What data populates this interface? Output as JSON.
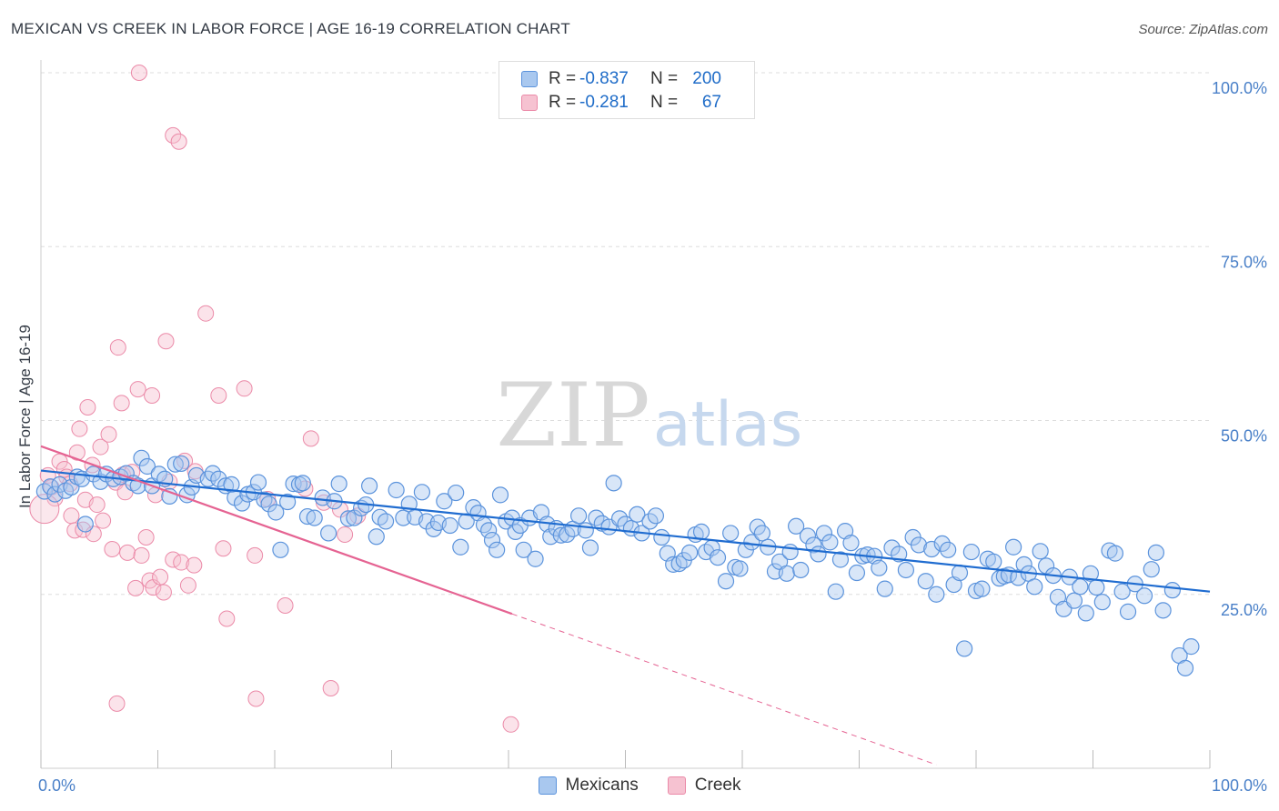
{
  "header": {
    "title": "MEXICAN VS CREEK IN LABOR FORCE | AGE 16-19 CORRELATION CHART",
    "source": "Source: ZipAtlas.com"
  },
  "watermark": {
    "zip": "ZIP",
    "atlas": "atlas"
  },
  "legend": {
    "rows": [
      {
        "r_label": "R =",
        "r_value": "-0.837",
        "n_label": "N =",
        "n_value": "200"
      },
      {
        "r_label": "R =",
        "r_value": "-0.281",
        "n_label": "N =",
        "n_value": "67"
      }
    ]
  },
  "bottom_legend": {
    "mexicans": "Mexicans",
    "creek": "Creek"
  },
  "colors": {
    "mexicans_fill": "#a9c8ef",
    "mexicans_stroke": "#5b93dc",
    "mexicans_line": "#1f6cd0",
    "creek_fill": "#f6c2d1",
    "creek_stroke": "#eb8aa8",
    "creek_line": "#e56392",
    "axis_text": "#4a80c8",
    "grid": "#dddddd"
  },
  "chart_data": {
    "type": "scatter",
    "title": "MEXICAN VS CREEK IN LABOR FORCE | AGE 16-19 CORRELATION CHART",
    "xlabel": "",
    "ylabel": "In Labor Force | Age 16-19",
    "xlim": [
      0,
      100
    ],
    "ylim": [
      0,
      100
    ],
    "x_tick_labels": [
      {
        "value": 0,
        "label": "0.0%"
      },
      {
        "value": 100,
        "label": "100.0%"
      }
    ],
    "y_tick_labels": [
      {
        "value": 25,
        "label": "25.0%"
      },
      {
        "value": 50,
        "label": "50.0%"
      },
      {
        "value": 75,
        "label": "75.0%"
      },
      {
        "value": 100,
        "label": "100.0%"
      }
    ],
    "grid": "horizontal dashed",
    "legend_position": "top-center",
    "series": [
      {
        "name": "Mexicans",
        "r": -0.837,
        "n": 200,
        "trend": {
          "x0": 0,
          "y0": 42.8,
          "x1": 100,
          "y1": 25.4
        },
        "points": [
          [
            0.3,
            39.8
          ],
          [
            0.8,
            40.5
          ],
          [
            1.2,
            39.4
          ],
          [
            1.6,
            40.8
          ],
          [
            2.1,
            39.9
          ],
          [
            2.6,
            40.4
          ],
          [
            3.1,
            41.9
          ],
          [
            3.5,
            41.6
          ],
          [
            3.8,
            35.1
          ],
          [
            4.5,
            42.3
          ],
          [
            5.1,
            41.2
          ],
          [
            5.6,
            42.3
          ],
          [
            6.2,
            41.6
          ],
          [
            6.8,
            41.9
          ],
          [
            7.3,
            42.4
          ],
          [
            7.9,
            41.0
          ],
          [
            8.3,
            40.6
          ],
          [
            8.6,
            44.6
          ],
          [
            9.1,
            43.4
          ],
          [
            9.5,
            40.6
          ],
          [
            10.1,
            42.3
          ],
          [
            10.6,
            41.6
          ],
          [
            11.0,
            39.1
          ],
          [
            11.5,
            43.7
          ],
          [
            12.0,
            43.8
          ],
          [
            12.5,
            39.3
          ],
          [
            12.9,
            40.4
          ],
          [
            13.3,
            42.1
          ],
          [
            14.3,
            41.6
          ],
          [
            14.7,
            42.4
          ],
          [
            15.2,
            41.6
          ],
          [
            15.8,
            40.6
          ],
          [
            16.3,
            40.8
          ],
          [
            16.6,
            38.9
          ],
          [
            17.2,
            38.1
          ],
          [
            17.7,
            39.4
          ],
          [
            18.2,
            39.7
          ],
          [
            18.6,
            41.1
          ],
          [
            19.1,
            38.6
          ],
          [
            19.5,
            38.0
          ],
          [
            20.1,
            36.8
          ],
          [
            20.5,
            31.4
          ],
          [
            21.1,
            38.3
          ],
          [
            21.6,
            40.9
          ],
          [
            22.1,
            40.8
          ],
          [
            22.4,
            41.0
          ],
          [
            22.8,
            36.2
          ],
          [
            23.4,
            36.0
          ],
          [
            24.1,
            38.9
          ],
          [
            24.6,
            33.8
          ],
          [
            25.1,
            38.4
          ],
          [
            25.5,
            40.9
          ],
          [
            26.3,
            35.9
          ],
          [
            26.8,
            36.0
          ],
          [
            27.4,
            37.4
          ],
          [
            27.8,
            37.9
          ],
          [
            28.1,
            40.6
          ],
          [
            28.7,
            33.3
          ],
          [
            29.0,
            36.1
          ],
          [
            29.5,
            35.5
          ],
          [
            30.4,
            40.0
          ],
          [
            31.0,
            36.0
          ],
          [
            31.5,
            38.0
          ],
          [
            32.0,
            36.1
          ],
          [
            32.6,
            39.7
          ],
          [
            33.0,
            35.5
          ],
          [
            33.6,
            34.4
          ],
          [
            34.0,
            35.3
          ],
          [
            34.5,
            38.4
          ],
          [
            35.0,
            34.9
          ],
          [
            35.5,
            39.6
          ],
          [
            35.9,
            31.8
          ],
          [
            36.4,
            35.5
          ],
          [
            37.0,
            37.5
          ],
          [
            37.4,
            36.7
          ],
          [
            37.9,
            35.0
          ],
          [
            38.3,
            34.2
          ],
          [
            38.6,
            32.8
          ],
          [
            39.0,
            31.4
          ],
          [
            39.3,
            39.3
          ],
          [
            39.8,
            35.5
          ],
          [
            40.3,
            36.0
          ],
          [
            40.6,
            34.0
          ],
          [
            41.0,
            34.9
          ],
          [
            41.3,
            31.4
          ],
          [
            41.8,
            36.0
          ],
          [
            42.3,
            30.1
          ],
          [
            42.8,
            36.8
          ],
          [
            43.3,
            35.1
          ],
          [
            43.6,
            33.3
          ],
          [
            44.1,
            34.5
          ],
          [
            44.5,
            33.5
          ],
          [
            45.0,
            33.6
          ],
          [
            45.5,
            34.4
          ],
          [
            46.0,
            36.3
          ],
          [
            46.6,
            34.2
          ],
          [
            47.0,
            31.7
          ],
          [
            47.5,
            36.0
          ],
          [
            48.0,
            35.2
          ],
          [
            48.6,
            34.7
          ],
          [
            49.0,
            41.0
          ],
          [
            49.5,
            35.9
          ],
          [
            50.0,
            35.1
          ],
          [
            50.5,
            34.5
          ],
          [
            51.0,
            36.5
          ],
          [
            51.4,
            33.8
          ],
          [
            52.1,
            35.5
          ],
          [
            52.6,
            36.3
          ],
          [
            53.1,
            33.2
          ],
          [
            53.6,
            30.9
          ],
          [
            54.1,
            29.3
          ],
          [
            54.6,
            29.4
          ],
          [
            55.0,
            29.9
          ],
          [
            55.5,
            31.0
          ],
          [
            56.0,
            33.6
          ],
          [
            56.5,
            34.0
          ],
          [
            56.9,
            31.1
          ],
          [
            57.4,
            31.7
          ],
          [
            57.9,
            30.3
          ],
          [
            58.6,
            26.9
          ],
          [
            59.0,
            33.8
          ],
          [
            59.4,
            28.9
          ],
          [
            59.8,
            28.7
          ],
          [
            60.3,
            31.4
          ],
          [
            60.8,
            32.5
          ],
          [
            61.3,
            34.7
          ],
          [
            61.7,
            33.8
          ],
          [
            62.2,
            31.8
          ],
          [
            62.8,
            28.3
          ],
          [
            63.2,
            29.7
          ],
          [
            63.8,
            28.0
          ],
          [
            64.1,
            31.1
          ],
          [
            64.6,
            34.8
          ],
          [
            65.0,
            28.5
          ],
          [
            65.6,
            33.4
          ],
          [
            66.1,
            32.1
          ],
          [
            66.5,
            30.8
          ],
          [
            67.0,
            33.8
          ],
          [
            67.5,
            32.5
          ],
          [
            68.0,
            25.4
          ],
          [
            68.4,
            30.0
          ],
          [
            68.8,
            34.1
          ],
          [
            69.3,
            32.4
          ],
          [
            69.8,
            28.1
          ],
          [
            70.3,
            30.5
          ],
          [
            70.7,
            30.7
          ],
          [
            71.3,
            30.5
          ],
          [
            71.7,
            28.8
          ],
          [
            72.2,
            25.8
          ],
          [
            72.8,
            31.7
          ],
          [
            73.4,
            30.8
          ],
          [
            74.0,
            28.5
          ],
          [
            74.6,
            33.2
          ],
          [
            75.1,
            32.1
          ],
          [
            75.7,
            26.9
          ],
          [
            76.2,
            31.5
          ],
          [
            76.6,
            25.0
          ],
          [
            77.1,
            32.3
          ],
          [
            77.6,
            31.4
          ],
          [
            78.1,
            26.4
          ],
          [
            78.6,
            28.1
          ],
          [
            79.0,
            17.2
          ],
          [
            79.6,
            31.1
          ],
          [
            80.0,
            25.5
          ],
          [
            80.5,
            25.8
          ],
          [
            81.0,
            30.1
          ],
          [
            81.5,
            29.7
          ],
          [
            82.0,
            27.3
          ],
          [
            82.4,
            27.6
          ],
          [
            82.8,
            27.8
          ],
          [
            83.2,
            31.8
          ],
          [
            83.6,
            27.4
          ],
          [
            84.1,
            29.3
          ],
          [
            84.5,
            28.0
          ],
          [
            85.0,
            26.1
          ],
          [
            85.5,
            31.2
          ],
          [
            86.0,
            29.1
          ],
          [
            86.6,
            27.7
          ],
          [
            87.0,
            24.6
          ],
          [
            87.5,
            22.9
          ],
          [
            88.0,
            27.5
          ],
          [
            88.4,
            24.1
          ],
          [
            88.9,
            26.1
          ],
          [
            89.4,
            22.3
          ],
          [
            89.8,
            28.0
          ],
          [
            90.3,
            26.0
          ],
          [
            90.8,
            23.9
          ],
          [
            91.4,
            31.3
          ],
          [
            91.9,
            30.9
          ],
          [
            92.5,
            25.4
          ],
          [
            93.0,
            22.5
          ],
          [
            93.6,
            26.5
          ],
          [
            94.4,
            24.8
          ],
          [
            95.0,
            28.6
          ],
          [
            95.4,
            31.0
          ],
          [
            96.0,
            22.7
          ],
          [
            96.8,
            25.6
          ],
          [
            97.4,
            16.2
          ],
          [
            97.9,
            14.4
          ],
          [
            98.4,
            17.5
          ]
        ]
      },
      {
        "name": "Creek",
        "r": -0.281,
        "n": 67,
        "trend": {
          "x0": 0,
          "y0": 46.3,
          "x1": 40.3,
          "y1": 22.2
        },
        "trend_dashed": {
          "x0": 40.3,
          "y0": 22.2,
          "x1": 76.6,
          "y1": 0.5
        },
        "points": [
          [
            0.6,
            42.1
          ],
          [
            0.9,
            40.4
          ],
          [
            1.2,
            38.8
          ],
          [
            1.6,
            44.1
          ],
          [
            2.0,
            43.0
          ],
          [
            2.2,
            41.9
          ],
          [
            2.6,
            36.3
          ],
          [
            2.9,
            34.2
          ],
          [
            3.1,
            45.4
          ],
          [
            3.3,
            48.8
          ],
          [
            3.6,
            34.3
          ],
          [
            3.8,
            38.6
          ],
          [
            4.0,
            51.9
          ],
          [
            4.4,
            43.6
          ],
          [
            4.5,
            33.7
          ],
          [
            4.8,
            37.9
          ],
          [
            5.1,
            46.2
          ],
          [
            5.3,
            35.6
          ],
          [
            5.8,
            48.0
          ],
          [
            6.1,
            31.5
          ],
          [
            6.4,
            41.1
          ],
          [
            6.6,
            60.5
          ],
          [
            6.9,
            52.5
          ],
          [
            7.0,
            42.2
          ],
          [
            7.2,
            39.7
          ],
          [
            7.4,
            31.0
          ],
          [
            7.8,
            42.6
          ],
          [
            8.1,
            25.9
          ],
          [
            8.3,
            54.5
          ],
          [
            8.6,
            30.6
          ],
          [
            9.0,
            33.2
          ],
          [
            9.3,
            27.0
          ],
          [
            9.5,
            53.6
          ],
          [
            9.6,
            26.0
          ],
          [
            9.8,
            39.3
          ],
          [
            10.2,
            27.5
          ],
          [
            10.5,
            25.3
          ],
          [
            10.7,
            61.4
          ],
          [
            11.0,
            41.2
          ],
          [
            11.3,
            30.0
          ],
          [
            12.0,
            29.6
          ],
          [
            12.3,
            44.2
          ],
          [
            12.6,
            26.3
          ],
          [
            13.1,
            29.2
          ],
          [
            14.1,
            65.4
          ],
          [
            15.2,
            53.6
          ],
          [
            15.6,
            31.6
          ],
          [
            15.9,
            21.5
          ],
          [
            17.4,
            54.6
          ],
          [
            18.3,
            30.6
          ],
          [
            18.4,
            10.0
          ],
          [
            19.4,
            38.7
          ],
          [
            20.9,
            23.4
          ],
          [
            22.6,
            40.2
          ],
          [
            23.1,
            47.4
          ],
          [
            24.2,
            38.2
          ],
          [
            24.8,
            11.5
          ],
          [
            25.6,
            37.2
          ],
          [
            26.0,
            33.6
          ],
          [
            27.1,
            36.3
          ],
          [
            6.5,
            9.3
          ],
          [
            11.3,
            91.0
          ],
          [
            11.8,
            90.1
          ],
          [
            13.2,
            42.7
          ],
          [
            40.2,
            6.3
          ],
          [
            8.4,
            100.0
          ],
          [
            2.5,
            40.9
          ]
        ]
      }
    ]
  }
}
